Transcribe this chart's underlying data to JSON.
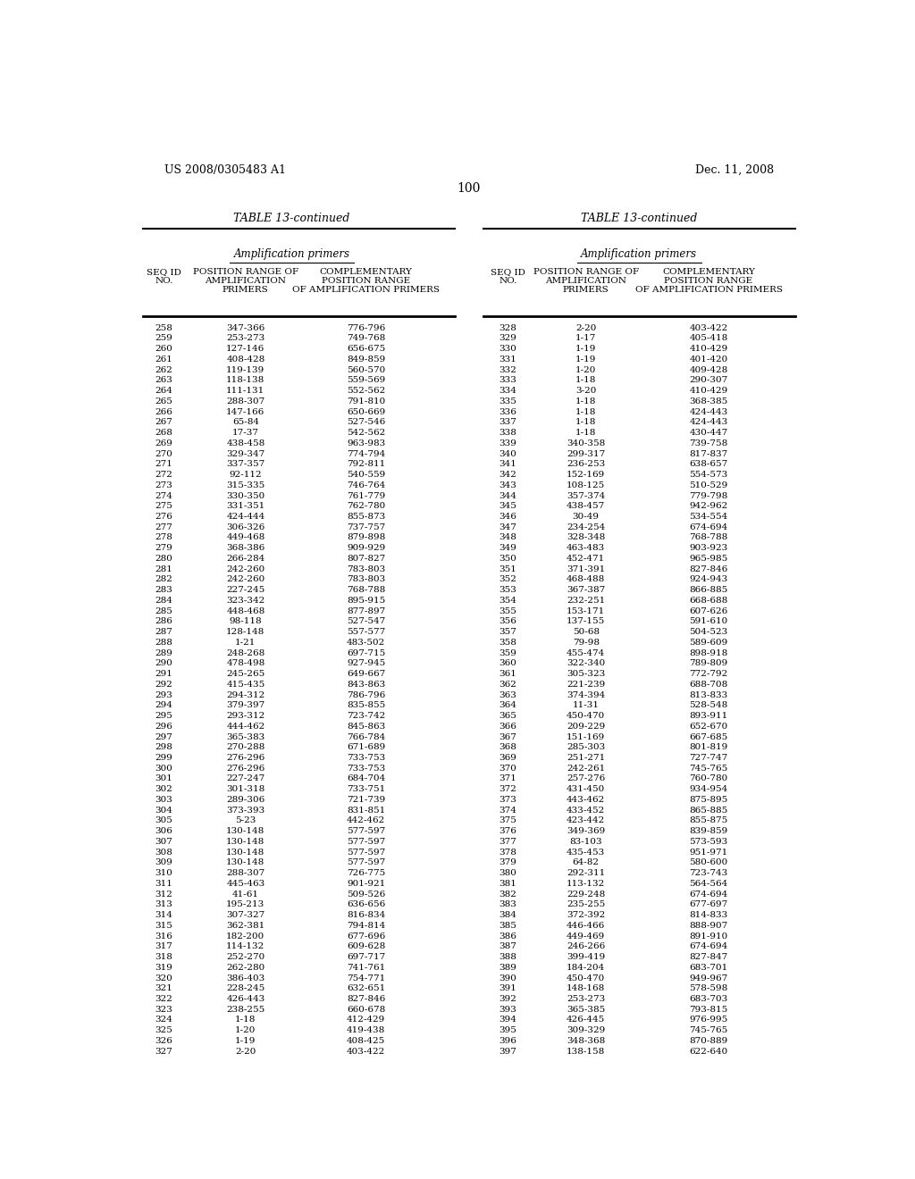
{
  "header_left": "US 2008/0305483 A1",
  "header_right": "Dec. 11, 2008",
  "page_number": "100",
  "table_title": "TABLE 13-continued",
  "section_header": "Amplification primers",
  "left_data": [
    [
      "258",
      "347-366",
      "776-796"
    ],
    [
      "259",
      "253-273",
      "749-768"
    ],
    [
      "260",
      "127-146",
      "656-675"
    ],
    [
      "261",
      "408-428",
      "849-859"
    ],
    [
      "262",
      "119-139",
      "560-570"
    ],
    [
      "263",
      "118-138",
      "559-569"
    ],
    [
      "264",
      "111-131",
      "552-562"
    ],
    [
      "265",
      "288-307",
      "791-810"
    ],
    [
      "266",
      "147-166",
      "650-669"
    ],
    [
      "267",
      "65-84",
      "527-546"
    ],
    [
      "268",
      "17-37",
      "542-562"
    ],
    [
      "269",
      "438-458",
      "963-983"
    ],
    [
      "270",
      "329-347",
      "774-794"
    ],
    [
      "271",
      "337-357",
      "792-811"
    ],
    [
      "272",
      "92-112",
      "540-559"
    ],
    [
      "273",
      "315-335",
      "746-764"
    ],
    [
      "274",
      "330-350",
      "761-779"
    ],
    [
      "275",
      "331-351",
      "762-780"
    ],
    [
      "276",
      "424-444",
      "855-873"
    ],
    [
      "277",
      "306-326",
      "737-757"
    ],
    [
      "278",
      "449-468",
      "879-898"
    ],
    [
      "279",
      "368-386",
      "909-929"
    ],
    [
      "280",
      "266-284",
      "807-827"
    ],
    [
      "281",
      "242-260",
      "783-803"
    ],
    [
      "282",
      "242-260",
      "783-803"
    ],
    [
      "283",
      "227-245",
      "768-788"
    ],
    [
      "284",
      "323-342",
      "895-915"
    ],
    [
      "285",
      "448-468",
      "877-897"
    ],
    [
      "286",
      "98-118",
      "527-547"
    ],
    [
      "287",
      "128-148",
      "557-577"
    ],
    [
      "288",
      "1-21",
      "483-502"
    ],
    [
      "289",
      "248-268",
      "697-715"
    ],
    [
      "290",
      "478-498",
      "927-945"
    ],
    [
      "291",
      "245-265",
      "649-667"
    ],
    [
      "292",
      "415-435",
      "843-863"
    ],
    [
      "293",
      "294-312",
      "786-796"
    ],
    [
      "294",
      "379-397",
      "835-855"
    ],
    [
      "295",
      "293-312",
      "723-742"
    ],
    [
      "296",
      "444-462",
      "845-863"
    ],
    [
      "297",
      "365-383",
      "766-784"
    ],
    [
      "298",
      "270-288",
      "671-689"
    ],
    [
      "299",
      "276-296",
      "733-753"
    ],
    [
      "300",
      "276-296",
      "733-753"
    ],
    [
      "301",
      "227-247",
      "684-704"
    ],
    [
      "302",
      "301-318",
      "733-751"
    ],
    [
      "303",
      "289-306",
      "721-739"
    ],
    [
      "304",
      "373-393",
      "831-851"
    ],
    [
      "305",
      "5-23",
      "442-462"
    ],
    [
      "306",
      "130-148",
      "577-597"
    ],
    [
      "307",
      "130-148",
      "577-597"
    ],
    [
      "308",
      "130-148",
      "577-597"
    ],
    [
      "309",
      "130-148",
      "577-597"
    ],
    [
      "310",
      "288-307",
      "726-775"
    ],
    [
      "311",
      "445-463",
      "901-921"
    ],
    [
      "312",
      "41-61",
      "509-526"
    ],
    [
      "313",
      "195-213",
      "636-656"
    ],
    [
      "314",
      "307-327",
      "816-834"
    ],
    [
      "315",
      "362-381",
      "794-814"
    ],
    [
      "316",
      "182-200",
      "677-696"
    ],
    [
      "317",
      "114-132",
      "609-628"
    ],
    [
      "318",
      "252-270",
      "697-717"
    ],
    [
      "319",
      "262-280",
      "741-761"
    ],
    [
      "320",
      "386-403",
      "754-771"
    ],
    [
      "321",
      "228-245",
      "632-651"
    ],
    [
      "322",
      "426-443",
      "827-846"
    ],
    [
      "323",
      "238-255",
      "660-678"
    ],
    [
      "324",
      "1-18",
      "412-429"
    ],
    [
      "325",
      "1-20",
      "419-438"
    ],
    [
      "326",
      "1-19",
      "408-425"
    ],
    [
      "327",
      "2-20",
      "403-422"
    ]
  ],
  "right_data": [
    [
      "328",
      "2-20",
      "403-422"
    ],
    [
      "329",
      "1-17",
      "405-418"
    ],
    [
      "330",
      "1-19",
      "410-429"
    ],
    [
      "331",
      "1-19",
      "401-420"
    ],
    [
      "332",
      "1-20",
      "409-428"
    ],
    [
      "333",
      "1-18",
      "290-307"
    ],
    [
      "334",
      "3-20",
      "410-429"
    ],
    [
      "335",
      "1-18",
      "368-385"
    ],
    [
      "336",
      "1-18",
      "424-443"
    ],
    [
      "337",
      "1-18",
      "424-443"
    ],
    [
      "338",
      "1-18",
      "430-447"
    ],
    [
      "339",
      "340-358",
      "739-758"
    ],
    [
      "340",
      "299-317",
      "817-837"
    ],
    [
      "341",
      "236-253",
      "638-657"
    ],
    [
      "342",
      "152-169",
      "554-573"
    ],
    [
      "343",
      "108-125",
      "510-529"
    ],
    [
      "344",
      "357-374",
      "779-798"
    ],
    [
      "345",
      "438-457",
      "942-962"
    ],
    [
      "346",
      "30-49",
      "534-554"
    ],
    [
      "347",
      "234-254",
      "674-694"
    ],
    [
      "348",
      "328-348",
      "768-788"
    ],
    [
      "349",
      "463-483",
      "903-923"
    ],
    [
      "350",
      "452-471",
      "965-985"
    ],
    [
      "351",
      "371-391",
      "827-846"
    ],
    [
      "352",
      "468-488",
      "924-943"
    ],
    [
      "353",
      "367-387",
      "866-885"
    ],
    [
      "354",
      "232-251",
      "668-688"
    ],
    [
      "355",
      "153-171",
      "607-626"
    ],
    [
      "356",
      "137-155",
      "591-610"
    ],
    [
      "357",
      "50-68",
      "504-523"
    ],
    [
      "358",
      "79-98",
      "589-609"
    ],
    [
      "359",
      "455-474",
      "898-918"
    ],
    [
      "360",
      "322-340",
      "789-809"
    ],
    [
      "361",
      "305-323",
      "772-792"
    ],
    [
      "362",
      "221-239",
      "688-708"
    ],
    [
      "363",
      "374-394",
      "813-833"
    ],
    [
      "364",
      "11-31",
      "528-548"
    ],
    [
      "365",
      "450-470",
      "893-911"
    ],
    [
      "366",
      "209-229",
      "652-670"
    ],
    [
      "367",
      "151-169",
      "667-685"
    ],
    [
      "368",
      "285-303",
      "801-819"
    ],
    [
      "369",
      "251-271",
      "727-747"
    ],
    [
      "370",
      "242-261",
      "745-765"
    ],
    [
      "371",
      "257-276",
      "760-780"
    ],
    [
      "372",
      "431-450",
      "934-954"
    ],
    [
      "373",
      "443-462",
      "875-895"
    ],
    [
      "374",
      "433-452",
      "865-885"
    ],
    [
      "375",
      "423-442",
      "855-875"
    ],
    [
      "376",
      "349-369",
      "839-859"
    ],
    [
      "377",
      "83-103",
      "573-593"
    ],
    [
      "378",
      "435-453",
      "951-971"
    ],
    [
      "379",
      "64-82",
      "580-600"
    ],
    [
      "380",
      "292-311",
      "723-743"
    ],
    [
      "381",
      "113-132",
      "564-564"
    ],
    [
      "382",
      "229-248",
      "674-694"
    ],
    [
      "383",
      "235-255",
      "677-697"
    ],
    [
      "384",
      "372-392",
      "814-833"
    ],
    [
      "385",
      "446-466",
      "888-907"
    ],
    [
      "386",
      "449-469",
      "891-910"
    ],
    [
      "387",
      "246-266",
      "674-694"
    ],
    [
      "388",
      "399-419",
      "827-847"
    ],
    [
      "389",
      "184-204",
      "683-701"
    ],
    [
      "390",
      "450-470",
      "949-967"
    ],
    [
      "391",
      "148-168",
      "578-598"
    ],
    [
      "392",
      "253-273",
      "683-703"
    ],
    [
      "393",
      "365-385",
      "793-815"
    ],
    [
      "394",
      "426-445",
      "976-995"
    ],
    [
      "395",
      "309-329",
      "745-765"
    ],
    [
      "396",
      "348-368",
      "870-889"
    ],
    [
      "397",
      "138-158",
      "622-640"
    ]
  ],
  "bg_color": "#ffffff",
  "text_color": "#000000",
  "font_size": 7.5,
  "header_font_size": 9
}
